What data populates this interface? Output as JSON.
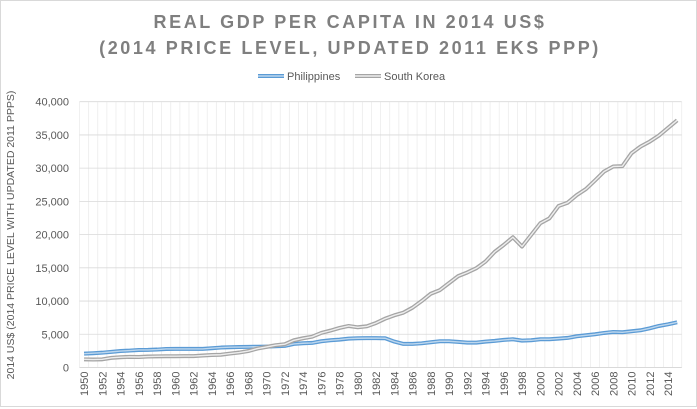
{
  "chart_data": {
    "type": "line",
    "title": [
      "REAL GDP PER CAPITA IN 2014 US$",
      "(2014 PRICE LEVEL, UPDATED 2011 EKS PPP)"
    ],
    "xlabel": "",
    "ylabel": "2014 US$ (2014 PRICE LEVEL WITH UPDATED 2011 PPPS)",
    "ylim": [
      0,
      40000
    ],
    "y_ticks": [
      0,
      5000,
      10000,
      15000,
      20000,
      25000,
      30000,
      35000,
      40000
    ],
    "y_tick_labels": [
      "0",
      "5,000",
      "10,000",
      "15,000",
      "20,000",
      "25,000",
      "30,000",
      "35,000",
      "40,000"
    ],
    "x": [
      1950,
      1951,
      1952,
      1953,
      1954,
      1955,
      1956,
      1957,
      1958,
      1959,
      1960,
      1961,
      1962,
      1963,
      1964,
      1965,
      1966,
      1967,
      1968,
      1969,
      1970,
      1971,
      1972,
      1973,
      1974,
      1975,
      1976,
      1977,
      1978,
      1979,
      1980,
      1981,
      1982,
      1983,
      1984,
      1985,
      1986,
      1987,
      1988,
      1989,
      1990,
      1991,
      1992,
      1993,
      1994,
      1995,
      1996,
      1997,
      1998,
      1999,
      2000,
      2001,
      2002,
      2003,
      2004,
      2005,
      2006,
      2007,
      2008,
      2009,
      2010,
      2011,
      2012,
      2013,
      2014,
      2015
    ],
    "x_tick_labels": [
      "1950",
      "1952",
      "1954",
      "1956",
      "1958",
      "1960",
      "1962",
      "1964",
      "1966",
      "1968",
      "1970",
      "1972",
      "1974",
      "1976",
      "1978",
      "1980",
      "1982",
      "1984",
      "1986",
      "1988",
      "1990",
      "1992",
      "1994",
      "1996",
      "1998",
      "2000",
      "2002",
      "2004",
      "2006",
      "2008",
      "2010",
      "2012",
      "2014"
    ],
    "grid": true,
    "legend_position": "top",
    "series": [
      {
        "name": "Philippines",
        "color": "#5b9bd5",
        "inner_color": "#bdd7ee",
        "values": [
          2080,
          2150,
          2230,
          2350,
          2480,
          2550,
          2640,
          2650,
          2700,
          2790,
          2800,
          2800,
          2800,
          2800,
          2900,
          3000,
          3050,
          3080,
          3100,
          3130,
          3150,
          3200,
          3250,
          3550,
          3650,
          3700,
          3950,
          4100,
          4200,
          4350,
          4400,
          4420,
          4420,
          4400,
          3900,
          3550,
          3550,
          3640,
          3800,
          3950,
          3950,
          3850,
          3750,
          3750,
          3900,
          4000,
          4150,
          4250,
          4050,
          4100,
          4250,
          4250,
          4350,
          4450,
          4700,
          4850,
          5000,
          5200,
          5350,
          5300,
          5450,
          5600,
          5900,
          6250,
          6500,
          6800
        ]
      },
      {
        "name": "South Korea",
        "color": "#a5a5a5",
        "inner_color": "#eeeeee",
        "values": [
          1230,
          1200,
          1230,
          1450,
          1550,
          1600,
          1580,
          1650,
          1680,
          1700,
          1700,
          1720,
          1720,
          1800,
          1880,
          1920,
          2100,
          2250,
          2480,
          2850,
          3100,
          3350,
          3500,
          4100,
          4400,
          4640,
          5200,
          5550,
          5950,
          6250,
          6050,
          6200,
          6700,
          7350,
          7850,
          8250,
          9000,
          10000,
          11100,
          11650,
          12700,
          13750,
          14300,
          14950,
          15950,
          17400,
          18450,
          19600,
          18200,
          19950,
          21700,
          22450,
          24300,
          24800,
          25950,
          26850,
          28150,
          29500,
          30250,
          30300,
          32250,
          33250,
          34000,
          34900,
          36050,
          37200
        ]
      }
    ]
  }
}
